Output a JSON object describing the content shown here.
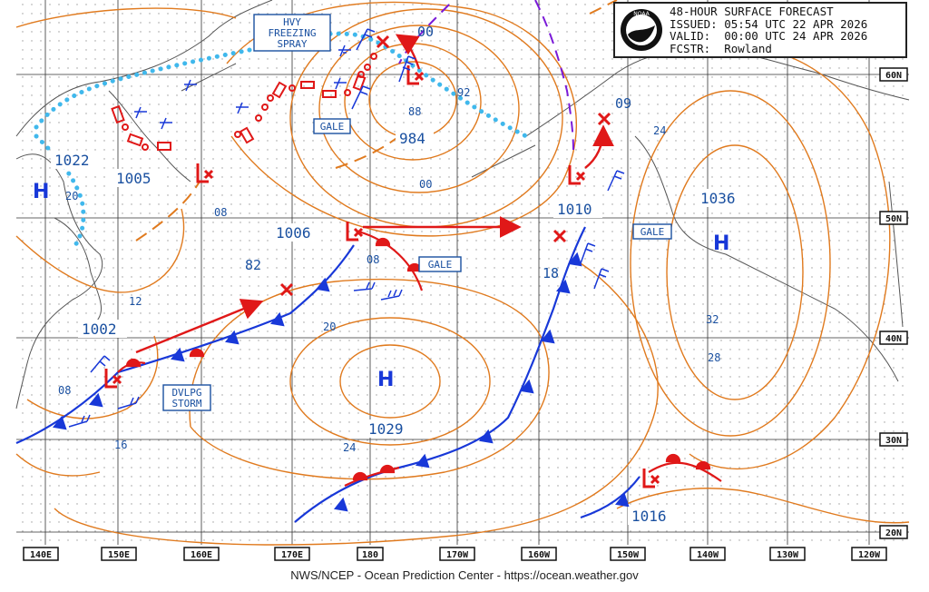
{
  "header": {
    "title": "48-HOUR SURFACE FORECAST",
    "issued": "ISSUED: 05:54 UTC 22 APR 2026",
    "valid": "VALID:  00:00 UTC 24 APR 2026",
    "forecaster": "FCSTR:  Rowland",
    "logo_alt": "NOAA"
  },
  "footer": {
    "credit": "NWS/NCEP - Ocean Prediction Center - https://ocean.weather.gov"
  },
  "longitude_labels": [
    "140E",
    "150E",
    "160E",
    "170E",
    "180",
    "170W",
    "160W",
    "150W",
    "140W",
    "130W",
    "120W"
  ],
  "latitude_labels": [
    "60N",
    "50N",
    "40N",
    "30N",
    "20N"
  ],
  "pressure_centers": [
    {
      "type": "H",
      "value": "1022",
      "name": "high-1022"
    },
    {
      "type": "L",
      "value": "1005",
      "name": "low-1005"
    },
    {
      "type": "L",
      "value": "1006",
      "name": "low-1006"
    },
    {
      "type": "L",
      "value": "984",
      "name": "low-984"
    },
    {
      "type": "L",
      "value": "1010",
      "name": "low-1010"
    },
    {
      "type": "H",
      "value": "1036",
      "name": "high-1036"
    },
    {
      "type": "H",
      "value": "1029",
      "name": "high-1029"
    },
    {
      "type": "L",
      "value": "1002",
      "name": "low-1002"
    },
    {
      "type": "L",
      "value": "1016",
      "name": "low-1016"
    }
  ],
  "isobar_labels": [
    "00",
    "92",
    "88",
    "00",
    "08",
    "20",
    "12",
    "08",
    "16",
    "24",
    "20",
    "24",
    "32",
    "28",
    "82",
    "08",
    "18",
    "09"
  ],
  "warnings": {
    "hvy_freezing_spray": [
      "HVY",
      "FREEZING",
      "SPRAY"
    ],
    "gale_1": "GALE",
    "gale_2": "GALE",
    "gale_3": "GALE",
    "dvlpg_storm": [
      "DVLPG",
      "STORM"
    ]
  },
  "colors": {
    "isobar": "#e07a1e",
    "cold_front": "#1838d8",
    "warm_front": "#e01818",
    "ice_edge": "#40b8ec",
    "trough": "#7a1ad8",
    "label_blue": "#1838d8",
    "land": "#666666",
    "grid": "#333333",
    "box_border": "#1a50a0"
  },
  "icons": [
    "noaa-logo-icon",
    "wind-barb-icon",
    "low-center-icon",
    "high-center-icon",
    "track-arrow-icon"
  ]
}
